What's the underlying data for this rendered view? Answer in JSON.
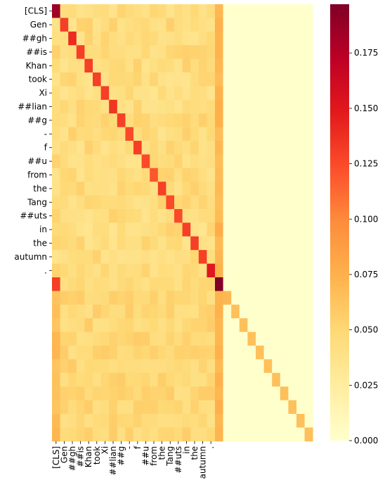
{
  "chart_data": {
    "type": "heatmap",
    "title": "",
    "xlabel": "",
    "ylabel": "",
    "tokens": [
      "[CLS]",
      "Gen",
      "##gh",
      "##is",
      "Khan",
      "took",
      "Xi",
      "##lian",
      "##g",
      "-",
      "f",
      "##u",
      "from",
      "the",
      "Tang",
      "##uts",
      "in",
      "the",
      "autumn",
      "."
    ],
    "n_rows": 32,
    "n_cols": 32,
    "x_tick_labels": [
      "[CLS]",
      "Gen",
      "##gh",
      "##is",
      "Khan",
      "took",
      "Xi",
      "##lian",
      "##g",
      "-",
      "f",
      "##u",
      "from",
      "the",
      "Tang",
      "##uts",
      "in",
      "the",
      "autumn",
      "."
    ],
    "y_tick_labels": [
      "[CLS]",
      "Gen",
      "##gh",
      "##is",
      "Khan",
      "took",
      "Xi",
      "##lian",
      "##g",
      "-",
      "f",
      "##u",
      "from",
      "the",
      "Tang",
      "##uts",
      "in",
      "the",
      "autumn",
      "."
    ],
    "values_description": "Token attention rows 0-19: diagonal ~0.13, off-diagonal ~0.04-0.05 over cols 0-19, col 20 ~0.07. Row 20: col0 ~0.13, col20 ~0.197. Rows 21-31: ~0.05 over cols 0-20, ~0.07 on diagonal, 0 elsewhere.",
    "diagonal_values": [
      0.185,
      0.13,
      0.14,
      0.13,
      0.13,
      0.13,
      0.13,
      0.135,
      0.13,
      0.125,
      0.13,
      0.125,
      0.12,
      0.13,
      0.125,
      0.125,
      0.13,
      0.13,
      0.13,
      0.15,
      0.197,
      0.07,
      0.065,
      0.065,
      0.065,
      0.065,
      0.065,
      0.065,
      0.065,
      0.065,
      0.065,
      0.065
    ],
    "colorbar": {
      "colormap": "YlOrRd",
      "min": 0.0,
      "max": 0.197,
      "ticks": [
        0.0,
        0.025,
        0.05,
        0.075,
        0.1,
        0.125,
        0.15,
        0.175
      ],
      "tick_labels": [
        "0.000",
        "0.025",
        "0.050",
        "0.075",
        "0.100",
        "0.125",
        "0.150",
        "0.175"
      ]
    }
  }
}
